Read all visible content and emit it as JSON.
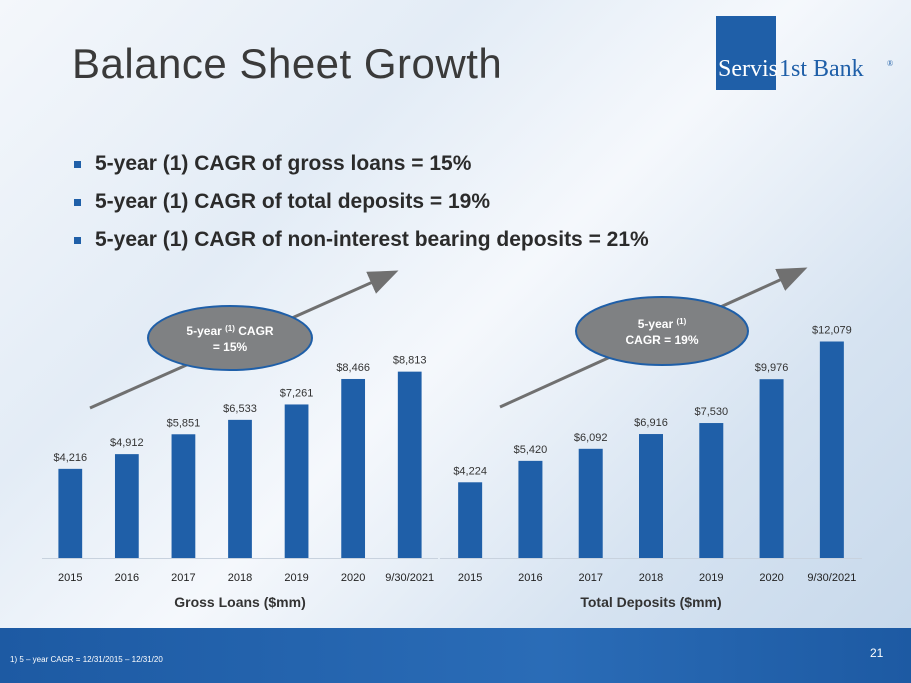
{
  "slide": {
    "title": "Balance Sheet Growth",
    "page_number": "21",
    "footnote": "1)      5 – year CAGR = 12/31/2015 – 12/31/20",
    "bullets": [
      "5-year (1) CAGR of gross loans = 15%",
      "5-year (1) CAGR of total deposits = 19%",
      "5-year (1) CAGR of non-interest bearing deposits = 21%"
    ]
  },
  "logo": {
    "part1": "Servis",
    "part2": "1st Bank",
    "mark": "®"
  },
  "colors": {
    "bar": "#1f5fa8",
    "title": "#3a3a3a",
    "ellipse": "#7f8183",
    "arrow": "#707070",
    "footer": "#1d5aa3"
  },
  "chart_data": [
    {
      "type": "bar",
      "xlabel": "Gross Loans ($mm)",
      "categories": [
        "2015",
        "2016",
        "2017",
        "2018",
        "2019",
        "2020",
        "9/30/2021"
      ],
      "values": [
        4216,
        4912,
        5851,
        6533,
        7261,
        8466,
        8813
      ],
      "labels": [
        "$4,216",
        "$4,912",
        "$5,851",
        "$6,533",
        "$7,261",
        "$8,466",
        "$8,813"
      ],
      "ylim": [
        0,
        9600
      ],
      "callout": {
        "line1": "5-year ",
        "sup": "(1)",
        "line1b": " CAGR",
        "line2": "= 15%"
      }
    },
    {
      "type": "bar",
      "xlabel": "Total Deposits ($mm)",
      "categories": [
        "2015",
        "2016",
        "2017",
        "2018",
        "2019",
        "2020",
        "9/30/2021"
      ],
      "values": [
        4224,
        5420,
        6092,
        6916,
        7530,
        9976,
        12079
      ],
      "labels": [
        "$4,224",
        "$5,420",
        "$6,092",
        "$6,916",
        "$7,530",
        "$9,976",
        "$12,079"
      ],
      "ylim": [
        0,
        13000
      ],
      "callout": {
        "line1": "5-year ",
        "sup": "(1)",
        "line1b": "",
        "line2": "CAGR = 19%"
      }
    }
  ]
}
